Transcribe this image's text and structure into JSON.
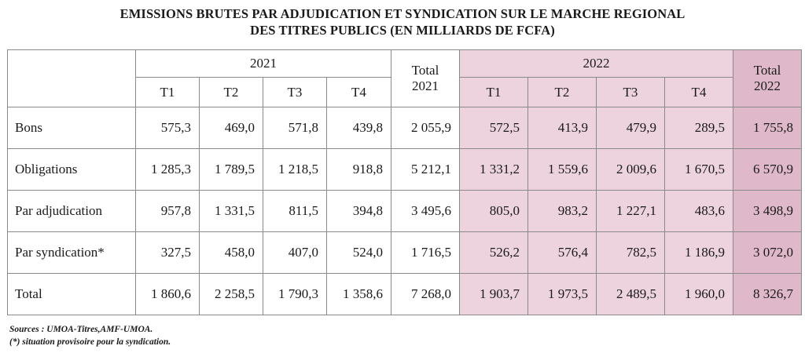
{
  "title": {
    "line1": "EMISSIONS BRUTES PAR ADJUDICATION ET SYNDICATION SUR LE MARCHE REGIONAL",
    "line2": "DES TITRES PUBLICS (EN MILLIARDS DE FCFA)"
  },
  "header": {
    "year1": "2021",
    "year2": "2022",
    "total1_line1": "Total",
    "total1_line2": "2021",
    "total2_line1": "Total",
    "total2_line2": "2022",
    "quarters": [
      "T1",
      "T2",
      "T3",
      "T4"
    ]
  },
  "rows": [
    {
      "label": "Bons",
      "y2021": [
        "575,3",
        "469,0",
        "571,8",
        "439,8"
      ],
      "total2021": "2 055,9",
      "y2022": [
        "572,5",
        "413,9",
        "479,9",
        "289,5"
      ],
      "total2022": "1 755,8"
    },
    {
      "label": "Obligations",
      "y2021": [
        "1 285,3",
        "1 789,5",
        "1 218,5",
        "918,8"
      ],
      "total2021": "5 212,1",
      "y2022": [
        "1 331,2",
        "1 559,6",
        "2 009,6",
        "1 670,5"
      ],
      "total2022": "6 570,9"
    },
    {
      "label": "Par adjudication",
      "y2021": [
        "957,8",
        "1 331,5",
        "811,5",
        "394,8"
      ],
      "total2021": "3 495,6",
      "y2022": [
        "805,0",
        "983,2",
        "1 227,1",
        "483,6"
      ],
      "total2022": "3 498,9"
    },
    {
      "label": "Par syndication*",
      "y2021": [
        "327,5",
        "458,0",
        "407,0",
        "524,0"
      ],
      "total2021": "1 716,5",
      "y2022": [
        "526,2",
        "576,4",
        "782,5",
        "1 186,9"
      ],
      "total2022": "3 072,0"
    },
    {
      "label": "Total",
      "y2021": [
        "1 860,6",
        "2 258,5",
        "1 790,3",
        "1 358,6"
      ],
      "total2021": "7 268,0",
      "y2022": [
        "1 903,7",
        "1 973,5",
        "2 489,5",
        "1 960,0"
      ],
      "total2022": "8 326,7"
    }
  ],
  "footer": {
    "sources": "Sources : UMOA-Titres,AMF-UMOA.",
    "note": "(*) situation provisoire pour la syndication."
  },
  "colors": {
    "pink": "#ecd3dd",
    "pink_dark": "#dfb9c9"
  }
}
